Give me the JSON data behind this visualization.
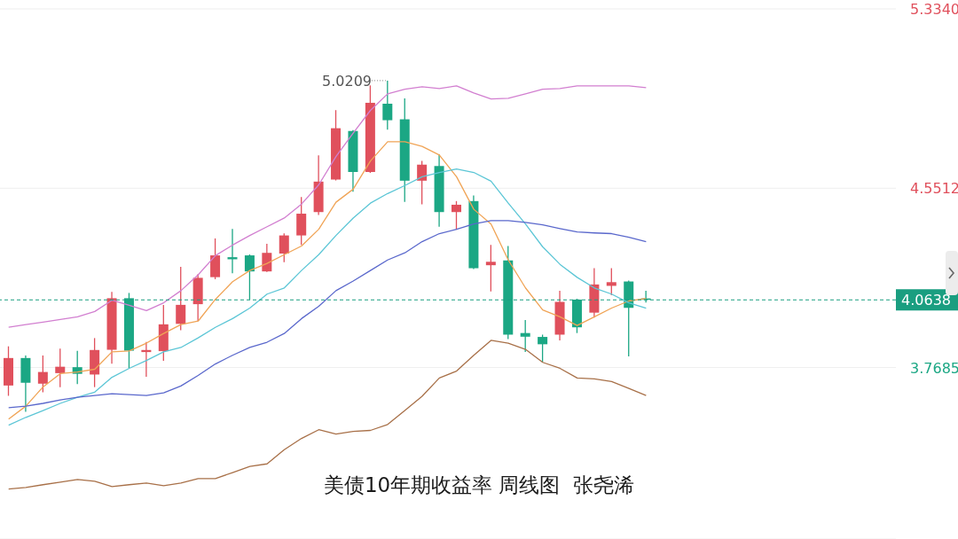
{
  "chart_data": {
    "type": "candlestick",
    "title": "美债10年期收益率 周线图  张尧浠",
    "categories": [
      null,
      null,
      null,
      null,
      null,
      null,
      null,
      null,
      null,
      null,
      null,
      null,
      null,
      null,
      null,
      null,
      null,
      null,
      null,
      null,
      null,
      null,
      null,
      null,
      null,
      null,
      null,
      null,
      null,
      null,
      null,
      null,
      null,
      null,
      null,
      null,
      null,
      null
    ],
    "ylim": [
      3.02,
      5.334
    ],
    "yticks": [
      {
        "value": 5.334,
        "label": "5.3340"
      },
      {
        "value": 4.5512,
        "label": "4.5512"
      },
      {
        "value": 3.7685,
        "label": "3.7685"
      }
    ],
    "grid": "y",
    "marker": "none",
    "line_style": "solid",
    "annotations": [
      "5.0209"
    ],
    "ref_lines": [
      {
        "axis": "y",
        "value": 4.0638,
        "label": "4.0638",
        "color": "#1a9e80",
        "line_style": "dashed"
      }
    ],
    "series": [
      {
        "ohlc": [
          [
            3.69,
            3.861,
            3.645,
            3.81
          ],
          [
            3.81,
            3.821,
            3.575,
            3.702
          ],
          [
            3.698,
            3.821,
            3.66,
            3.749
          ],
          [
            3.744,
            3.851,
            3.683,
            3.772
          ],
          [
            3.77,
            3.841,
            3.696,
            3.741
          ],
          [
            3.738,
            3.897,
            3.683,
            3.845
          ],
          [
            3.846,
            4.099,
            3.785,
            4.071
          ],
          [
            4.071,
            4.094,
            3.766,
            3.842
          ],
          [
            3.836,
            3.88,
            3.728,
            3.845
          ],
          [
            3.84,
            4.042,
            3.798,
            3.957
          ],
          [
            3.959,
            4.208,
            3.931,
            4.042
          ],
          [
            4.045,
            4.176,
            3.972,
            4.16
          ],
          [
            4.163,
            4.332,
            4.154,
            4.258
          ],
          [
            4.25,
            4.373,
            4.18,
            4.241
          ],
          [
            4.258,
            4.262,
            4.065,
            4.188
          ],
          [
            4.188,
            4.309,
            4.186,
            4.269
          ],
          [
            4.266,
            4.354,
            4.228,
            4.345
          ],
          [
            4.345,
            4.513,
            4.304,
            4.44
          ],
          [
            4.447,
            4.695,
            4.434,
            4.58
          ],
          [
            4.589,
            4.892,
            4.585,
            4.813
          ],
          [
            4.801,
            4.805,
            4.536,
            4.622
          ],
          [
            4.622,
            5.0,
            4.618,
            4.924
          ],
          [
            4.92,
            5.0209,
            4.807,
            4.848
          ],
          [
            4.852,
            4.943,
            4.491,
            4.584
          ],
          [
            4.584,
            4.67,
            4.481,
            4.654
          ],
          [
            4.648,
            4.699,
            4.383,
            4.447
          ],
          [
            4.447,
            4.495,
            4.37,
            4.479
          ],
          [
            4.495,
            4.519,
            4.198,
            4.202
          ],
          [
            4.215,
            4.304,
            4.101,
            4.23
          ],
          [
            4.236,
            4.299,
            3.893,
            3.912
          ],
          [
            3.919,
            3.976,
            3.836,
            3.903
          ],
          [
            3.902,
            3.912,
            3.791,
            3.87
          ],
          [
            3.912,
            4.103,
            3.887,
            4.055
          ],
          [
            4.065,
            4.068,
            3.919,
            3.944
          ],
          [
            4.008,
            4.202,
            3.986,
            4.131
          ],
          [
            4.125,
            4.202,
            4.084,
            4.141
          ],
          [
            4.144,
            4.148,
            3.817,
            4.029
          ],
          [
            4.07,
            4.103,
            4.052,
            4.0638
          ]
        ],
        "colors": [
          "#e0505c",
          "#1ba784",
          "#e0505c",
          "#e0505c",
          "#1ba784",
          "#e0505c",
          "#e0505c",
          "#1ba784",
          "#e0505c",
          "#e0505c",
          "#e0505c",
          "#e0505c",
          "#e0505c",
          "#1ba784",
          "#1ba784",
          "#e0505c",
          "#e0505c",
          "#e0505c",
          "#e0505c",
          "#e0505c",
          "#1ba784",
          "#e0505c",
          "#1ba784",
          "#1ba784",
          "#e0505c",
          "#1ba784",
          "#e0505c",
          "#1ba784",
          "#e0505c",
          "#1ba784",
          "#1ba784",
          "#1ba784",
          "#e0505c",
          "#1ba784",
          "#e0505c",
          "#e0505c",
          "#1ba784",
          "#1ba784"
        ]
      },
      {
        "type": "line",
        "color": "#d27fd0",
        "values": [
          3.944,
          3.956,
          3.967,
          3.978,
          3.99,
          4.013,
          4.062,
          4.04,
          4.017,
          4.051,
          4.104,
          4.173,
          4.257,
          4.303,
          4.345,
          4.383,
          4.421,
          4.482,
          4.566,
          4.689,
          4.792,
          4.891,
          4.963,
          4.983,
          4.994,
          4.986,
          4.998,
          4.967,
          4.941,
          4.944,
          4.963,
          4.983,
          4.986,
          4.998,
          4.998,
          4.998,
          4.998,
          4.99
        ]
      },
      {
        "type": "line",
        "color": "#f0a456",
        "values": [
          3.543,
          3.6,
          3.684,
          3.742,
          3.749,
          3.761,
          3.837,
          3.841,
          3.875,
          3.917,
          3.956,
          3.971,
          4.066,
          4.143,
          4.192,
          4.223,
          4.261,
          4.299,
          4.372,
          4.49,
          4.547,
          4.67,
          4.754,
          4.754,
          4.734,
          4.696,
          4.601,
          4.459,
          4.395,
          4.238,
          4.116,
          4.02,
          3.99,
          3.952,
          3.99,
          4.028,
          4.059,
          4.07
        ]
      },
      {
        "type": "line",
        "color": "#5cc6d6",
        "values": [
          3.517,
          3.551,
          3.581,
          3.612,
          3.639,
          3.661,
          3.726,
          3.765,
          3.799,
          3.837,
          3.856,
          3.898,
          3.944,
          3.982,
          4.028,
          4.089,
          4.116,
          4.192,
          4.261,
          4.345,
          4.421,
          4.486,
          4.528,
          4.563,
          4.601,
          4.62,
          4.635,
          4.62,
          4.582,
          4.486,
          4.395,
          4.295,
          4.219,
          4.162,
          4.116,
          4.089,
          4.051,
          4.028
        ]
      },
      {
        "type": "line",
        "color": "#5a68cc",
        "values": [
          3.593,
          3.6,
          3.612,
          3.627,
          3.639,
          3.646,
          3.654,
          3.65,
          3.646,
          3.658,
          3.688,
          3.734,
          3.784,
          3.822,
          3.856,
          3.879,
          3.917,
          3.982,
          4.036,
          4.104,
          4.146,
          4.192,
          4.238,
          4.269,
          4.318,
          4.353,
          4.372,
          4.395,
          4.41,
          4.41,
          4.402,
          4.391,
          4.375,
          4.36,
          4.356,
          4.353,
          4.337,
          4.318
        ]
      },
      {
        "type": "line",
        "color": "#a87048",
        "values": [
          3.238,
          3.245,
          3.257,
          3.268,
          3.28,
          3.272,
          3.249,
          3.257,
          3.264,
          3.253,
          3.264,
          3.284,
          3.284,
          3.31,
          3.337,
          3.348,
          3.41,
          3.459,
          3.497,
          3.478,
          3.49,
          3.494,
          3.52,
          3.581,
          3.643,
          3.723,
          3.753,
          3.822,
          3.887,
          3.875,
          3.848,
          3.791,
          3.765,
          3.723,
          3.719,
          3.707,
          3.677,
          3.646
        ]
      }
    ]
  }
}
